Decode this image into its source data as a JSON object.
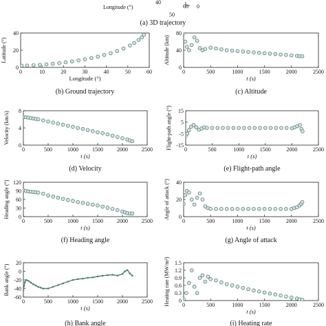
{
  "top": {
    "axis_label": "Longitude (°)",
    "tick_labels": [
      "40",
      "50",
      "60",
      "0"
    ],
    "caption": "(a) 3D trajectory"
  },
  "chart_data": [
    {
      "id": "b",
      "type": "scatter",
      "caption": "(b) Ground trajectory",
      "xlabel": "Longitude (°)",
      "ylabel": "Latitude (°)",
      "xlim": [
        0,
        60
      ],
      "ylim": [
        0,
        40
      ],
      "xticks": [
        0,
        10,
        20,
        30,
        40,
        50,
        60
      ],
      "yticks": [
        0,
        20,
        40
      ],
      "x": [
        0.5,
        3,
        6,
        9,
        12,
        15,
        18,
        21,
        24,
        27,
        30,
        33,
        36,
        39,
        42,
        45,
        48,
        51,
        53,
        55,
        56.5,
        57.5
      ],
      "y": [
        2,
        2.2,
        2.5,
        3,
        3.5,
        4.2,
        5,
        6,
        7,
        8.2,
        9.5,
        11,
        12.5,
        14.5,
        16.5,
        19,
        22,
        25.5,
        28.5,
        32,
        35,
        38
      ]
    },
    {
      "id": "c",
      "type": "scatter",
      "caption": "(c) Altitude",
      "xlabel": "t (s)",
      "ylabel": "Altitude (km)",
      "xlim": [
        0,
        2500
      ],
      "ylim": [
        0,
        80
      ],
      "xticks": [
        0,
        500,
        1000,
        1500,
        2000,
        2500
      ],
      "yticks": [
        0,
        40,
        80
      ],
      "x": [
        0,
        30,
        60,
        100,
        150,
        200,
        250,
        300,
        350,
        400,
        500,
        600,
        700,
        800,
        900,
        1000,
        1100,
        1200,
        1300,
        1400,
        1500,
        1600,
        1700,
        1800,
        1900,
        2000,
        2100,
        2150,
        2200
      ],
      "y": [
        80,
        60,
        48,
        40,
        52,
        70,
        62,
        45,
        40,
        43,
        46,
        44,
        42,
        40,
        39,
        38,
        37,
        36,
        35,
        34,
        33,
        32,
        31,
        30,
        29,
        28,
        27,
        26,
        26
      ]
    },
    {
      "id": "d",
      "type": "scatter",
      "caption": "(d) Velocity",
      "xlabel": "t (s)",
      "ylabel": "Velocity (km/s)",
      "xlim": [
        0,
        2500
      ],
      "ylim": [
        0,
        8
      ],
      "xticks": [
        0,
        500,
        1000,
        1500,
        2000,
        2500
      ],
      "yticks": [
        0,
        4,
        8
      ],
      "x": [
        0,
        50,
        100,
        150,
        200,
        250,
        300,
        400,
        500,
        600,
        700,
        800,
        900,
        1000,
        1100,
        1200,
        1300,
        1400,
        1500,
        1600,
        1700,
        1800,
        1900,
        2000,
        2100,
        2150,
        2200
      ],
      "y": [
        6.5,
        6.5,
        6.4,
        6.3,
        6.2,
        6.1,
        6.0,
        5.75,
        5.5,
        5.25,
        5.0,
        4.75,
        4.5,
        4.25,
        4.0,
        3.75,
        3.5,
        3.25,
        3.0,
        2.75,
        2.5,
        2.2,
        1.9,
        1.6,
        1.3,
        1.1,
        0.9
      ]
    },
    {
      "id": "e",
      "type": "scatter",
      "caption": "(e) Flight-path angle",
      "xlabel": "t (s)",
      "ylabel": "Flight-path angle (°)",
      "xlim": [
        0,
        2500
      ],
      "ylim": [
        -15,
        15
      ],
      "xticks": [
        0,
        500,
        1000,
        1500,
        2000,
        2500
      ],
      "yticks": [
        -15,
        -5,
        5,
        15
      ],
      "x": [
        0,
        30,
        60,
        100,
        150,
        200,
        250,
        300,
        350,
        400,
        500,
        600,
        700,
        800,
        900,
        1000,
        1100,
        1200,
        1300,
        1400,
        1500,
        1600,
        1700,
        1800,
        1900,
        2000,
        2050,
        2100,
        2150,
        2180,
        2200
      ],
      "y": [
        -7,
        -5,
        -2,
        1,
        2.5,
        0.5,
        -1.5,
        -0.5,
        0.5,
        0,
        0,
        0,
        0,
        0,
        0,
        0,
        0,
        0,
        0,
        0,
        0,
        0,
        0,
        0,
        0,
        -0.3,
        0.5,
        1.5,
        2.5,
        -1,
        -3
      ]
    },
    {
      "id": "f",
      "type": "scatter",
      "caption": "(f) Heading angle",
      "xlabel": "t (s)",
      "ylabel": "Heading angle (°)",
      "xlim": [
        0,
        2500
      ],
      "ylim": [
        0,
        120
      ],
      "xticks": [
        0,
        500,
        1000,
        1500,
        2000,
        2500
      ],
      "yticks": [
        0,
        30,
        60,
        90,
        120
      ],
      "x": [
        0,
        50,
        100,
        150,
        200,
        250,
        300,
        400,
        500,
        600,
        700,
        800,
        900,
        1000,
        1100,
        1200,
        1300,
        1400,
        1500,
        1600,
        1700,
        1800,
        1900,
        2000,
        2050,
        2100,
        2150,
        2200
      ],
      "y": [
        92,
        90,
        88,
        87,
        86,
        85,
        84,
        80,
        74,
        70,
        66,
        62,
        58,
        55,
        51,
        48,
        45,
        42,
        39,
        35,
        31,
        27,
        23,
        18,
        15,
        12,
        11,
        11
      ]
    },
    {
      "id": "g",
      "type": "scatter",
      "caption": "(g) Angle of attack",
      "xlabel": "t (s)",
      "ylabel": "Angle of attack (°)",
      "xlim": [
        0,
        2500
      ],
      "ylim": [
        0,
        40
      ],
      "xticks": [
        0,
        500,
        1000,
        1500,
        2000,
        2500
      ],
      "yticks": [
        0,
        20,
        40
      ],
      "x": [
        0,
        30,
        60,
        100,
        150,
        200,
        250,
        300,
        350,
        400,
        450,
        500,
        600,
        700,
        800,
        900,
        1000,
        1100,
        1200,
        1300,
        1400,
        1500,
        1600,
        1700,
        1800,
        1900,
        2000,
        2050,
        2100,
        2150,
        2180,
        2200
      ],
      "y": [
        15,
        25,
        30,
        28,
        20,
        14,
        22,
        27,
        20,
        12,
        10,
        9,
        9,
        9,
        9,
        9,
        9,
        9,
        9,
        9,
        9,
        9,
        9,
        9,
        9,
        9,
        9,
        10,
        11,
        13,
        15,
        17
      ]
    },
    {
      "id": "h",
      "type": "line",
      "caption": "(h) Bank angle",
      "xlabel": "t (s)",
      "ylabel": "Bank angle (°)",
      "xlim": [
        0,
        2500
      ],
      "ylim": [
        -60,
        20
      ],
      "xticks": [
        0,
        500,
        1000,
        1500,
        2000,
        2500
      ],
      "yticks": [
        -60,
        -40,
        -20,
        0,
        20
      ],
      "x": [
        0,
        30,
        60,
        100,
        150,
        200,
        250,
        300,
        350,
        400,
        500,
        600,
        700,
        800,
        900,
        1000,
        1100,
        1200,
        1300,
        1400,
        1500,
        1600,
        1700,
        1800,
        1900,
        2000,
        2050,
        2100,
        2150,
        2200
      ],
      "y": [
        -45,
        -25,
        -20,
        -22,
        -26,
        -30,
        -33,
        -36,
        -38,
        -40,
        -40,
        -36,
        -32,
        -28,
        -24,
        -20,
        -18,
        -17,
        -15,
        -14,
        -12,
        -10,
        -9,
        -8,
        -10,
        -6,
        0,
        3,
        -5,
        -10
      ]
    },
    {
      "id": "i",
      "type": "scatter",
      "caption": "(i) Heating rate",
      "xlabel": "t (s)",
      "ylabel": "Heating rate (MW/m²)",
      "xlim": [
        0,
        2500
      ],
      "ylim": [
        0,
        1.5
      ],
      "xticks": [
        0,
        500,
        1000,
        1500,
        2000,
        2500
      ],
      "yticks": [
        0,
        0.3,
        0.6,
        0.9,
        1.2,
        1.5
      ],
      "x": [
        0,
        50,
        100,
        150,
        200,
        250,
        300,
        350,
        400,
        450,
        500,
        600,
        700,
        800,
        900,
        1000,
        1100,
        1200,
        1300,
        1400,
        1500,
        1600,
        1700,
        1800,
        1900,
        2000,
        2100,
        2150,
        2200
      ],
      "y": [
        0.05,
        0.3,
        0.7,
        1.2,
        0.55,
        0.3,
        0.9,
        1.0,
        0.75,
        0.95,
        0.85,
        0.8,
        0.72,
        0.65,
        0.6,
        0.55,
        0.5,
        0.45,
        0.4,
        0.36,
        0.32,
        0.28,
        0.24,
        0.2,
        0.16,
        0.12,
        0.08,
        0.05,
        0.03
      ]
    }
  ]
}
